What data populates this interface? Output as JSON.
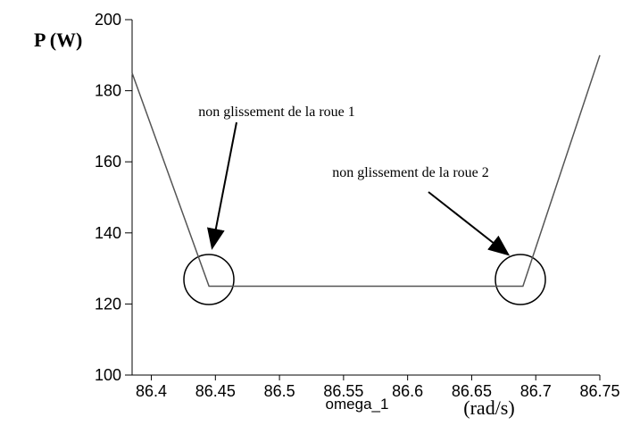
{
  "chart_data": {
    "type": "line",
    "y_label": "P (W)",
    "x_label": "omega_1",
    "x_unit": "(rad/s)",
    "annotations": [
      "non glissement de la roue 1",
      "non glissement de la roue 2"
    ],
    "x": [
      86.385,
      86.445,
      86.69,
      86.75
    ],
    "series": [
      {
        "color": "#555555",
        "values": [
          185,
          125,
          125,
          190
        ]
      }
    ],
    "xlim": [
      86.385,
      86.75
    ],
    "xticks": [
      86.4,
      86.45,
      86.5,
      86.55,
      86.6,
      86.65,
      86.7,
      86.75
    ],
    "ylim": [
      100,
      200
    ],
    "yticks": [
      100,
      120,
      140,
      160,
      180,
      200
    ]
  }
}
